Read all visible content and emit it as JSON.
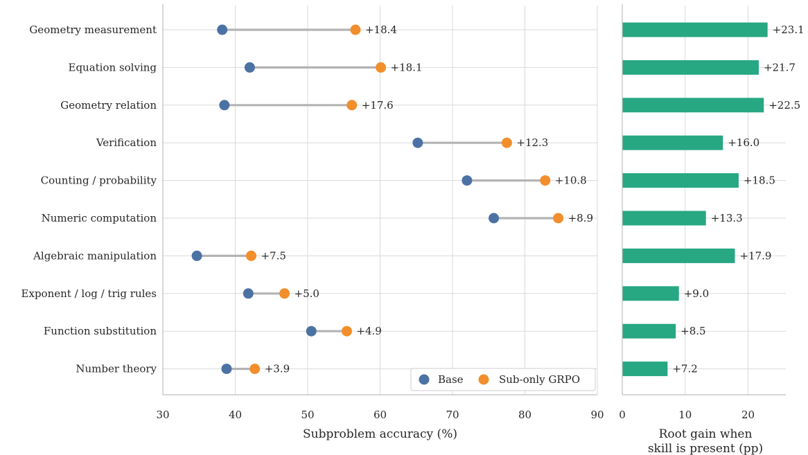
{
  "chart_data": [
    {
      "type": "dumbbell",
      "categories": [
        "Geometry measurement",
        "Equation solving",
        "Geometry relation",
        "Verification",
        "Counting / probability",
        "Numeric computation",
        "Algebraic manipulation",
        "Exponent / log / trig rules",
        "Function substitution",
        "Number theory"
      ],
      "series": [
        {
          "name": "Base",
          "color": "#4c72a4",
          "values": [
            38.2,
            42.0,
            38.5,
            65.2,
            72.0,
            75.7,
            34.7,
            41.8,
            50.5,
            38.8
          ]
        },
        {
          "name": "Sub-only GRPO",
          "color": "#f28e2b",
          "values": [
            56.6,
            60.1,
            56.1,
            77.5,
            82.8,
            84.6,
            42.2,
            46.8,
            55.4,
            42.7
          ]
        }
      ],
      "data_labels": [
        "+18.4",
        "+18.1",
        "+17.6",
        "+12.3",
        "+10.8",
        "+8.9",
        "+7.5",
        "+5.0",
        "+4.9",
        "+3.9"
      ],
      "xlabel": "Subproblem accuracy (%)",
      "xlim": [
        30,
        90
      ],
      "xticks": [
        "30",
        "40",
        "50",
        "60",
        "70",
        "80",
        "90"
      ],
      "connector_color": "#b3b3b3",
      "grid": true,
      "legend_position": "bottom-right"
    },
    {
      "type": "bar",
      "orientation": "horizontal",
      "categories": [
        "Geometry measurement",
        "Equation solving",
        "Geometry relation",
        "Verification",
        "Counting / probability",
        "Numeric computation",
        "Algebraic manipulation",
        "Exponent / log / trig rules",
        "Function substitution",
        "Number theory"
      ],
      "values": [
        23.1,
        21.7,
        22.5,
        16.0,
        18.5,
        13.3,
        17.9,
        9.0,
        8.5,
        7.2
      ],
      "data_labels": [
        "+23.1",
        "+21.7",
        "+22.5",
        "+16.0",
        "+18.5",
        "+13.3",
        "+17.9",
        "+9.0",
        "+8.5",
        "+7.2"
      ],
      "xlabel_lines": [
        "Root gain when",
        "skill is present (pp)"
      ],
      "xlim": [
        0,
        26
      ],
      "xticks": [
        "0",
        "10",
        "20"
      ],
      "color": "#27a782",
      "grid": true
    }
  ]
}
